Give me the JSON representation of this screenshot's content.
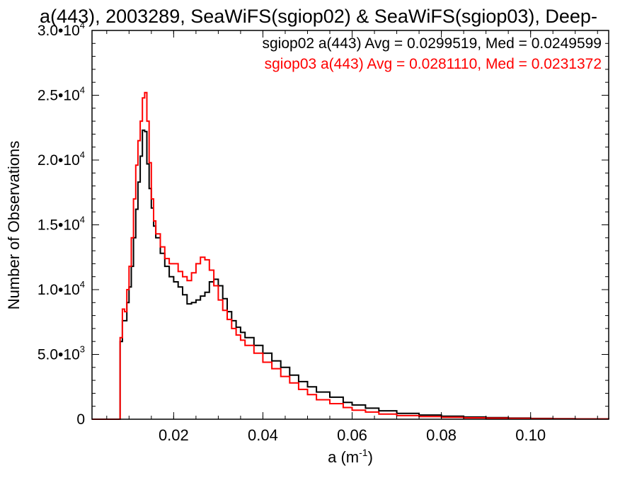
{
  "chart_data": {
    "type": "line",
    "title": "a(443), 2003289, SeaWiFS(sgiop02) & SeaWiFS(sgiop03), Deep-",
    "xlabel": "a (m",
    "xlabel_sup": "-1",
    "xlabel_close": ")",
    "ylabel": "Number of Observations",
    "xlim": [
      0.0017,
      0.1175
    ],
    "ylim": [
      0,
      30000
    ],
    "grid": false,
    "legend_position": "top-right",
    "x_ticks": [
      {
        "value": 0.02,
        "label": "0.02"
      },
      {
        "value": 0.04,
        "label": "0.04"
      },
      {
        "value": 0.06,
        "label": "0.06"
      },
      {
        "value": 0.08,
        "label": "0.08"
      },
      {
        "value": 0.1,
        "label": "0.10"
      }
    ],
    "y_ticks": [
      {
        "value": 0,
        "mant": "0",
        "exp": ""
      },
      {
        "value": 5000,
        "mant": "5.0•10",
        "exp": "3"
      },
      {
        "value": 10000,
        "mant": "1.0•10",
        "exp": "4"
      },
      {
        "value": 15000,
        "mant": "1.5•10",
        "exp": "4"
      },
      {
        "value": 20000,
        "mant": "2.0•10",
        "exp": "4"
      },
      {
        "value": 25000,
        "mant": "2.5•10",
        "exp": "4"
      },
      {
        "value": 30000,
        "mant": "3.0•10",
        "exp": "4"
      }
    ],
    "series": [
      {
        "key": "sgiop02",
        "color": "#000000",
        "legend": "sgiop02 a(443) Avg = 0.0299519, Med = 0.0249599",
        "x": [
          0.0017,
          0.007,
          0.008,
          0.0085,
          0.009,
          0.0095,
          0.01,
          0.0105,
          0.011,
          0.0115,
          0.012,
          0.0125,
          0.013,
          0.0135,
          0.014,
          0.0145,
          0.015,
          0.0155,
          0.016,
          0.017,
          0.018,
          0.019,
          0.02,
          0.021,
          0.022,
          0.023,
          0.024,
          0.025,
          0.026,
          0.027,
          0.028,
          0.029,
          0.03,
          0.031,
          0.032,
          0.033,
          0.034,
          0.035,
          0.036,
          0.038,
          0.04,
          0.042,
          0.044,
          0.046,
          0.048,
          0.05,
          0.052,
          0.055,
          0.058,
          0.06,
          0.063,
          0.066,
          0.07,
          0.075,
          0.08,
          0.085,
          0.09,
          0.095,
          0.1,
          0.105,
          0.11,
          0.1175
        ],
        "values": [
          0,
          0,
          6000,
          7600,
          7600,
          9000,
          10200,
          11800,
          14000,
          16200,
          18300,
          20300,
          22300,
          22200,
          19700,
          17800,
          16300,
          14900,
          14000,
          12800,
          11800,
          11000,
          10600,
          10200,
          9600,
          8900,
          9000,
          9200,
          9500,
          9800,
          10600,
          10800,
          10300,
          9300,
          8300,
          7600,
          7100,
          6700,
          6300,
          5700,
          5100,
          4500,
          4000,
          3400,
          2900,
          2500,
          2100,
          1700,
          1300,
          1100,
          850,
          650,
          450,
          320,
          230,
          170,
          120,
          90,
          60,
          40,
          30,
          20
        ]
      },
      {
        "key": "sgiop03",
        "color": "#ff0000",
        "legend": "sgiop03 a(443) Avg = 0.0281110, Med = 0.0231372",
        "x": [
          0.0017,
          0.007,
          0.008,
          0.0085,
          0.009,
          0.0095,
          0.01,
          0.0105,
          0.011,
          0.0115,
          0.012,
          0.0125,
          0.013,
          0.0135,
          0.014,
          0.0145,
          0.015,
          0.0155,
          0.016,
          0.017,
          0.018,
          0.019,
          0.02,
          0.021,
          0.022,
          0.023,
          0.024,
          0.025,
          0.026,
          0.027,
          0.028,
          0.029,
          0.03,
          0.031,
          0.032,
          0.033,
          0.034,
          0.035,
          0.036,
          0.038,
          0.04,
          0.042,
          0.044,
          0.046,
          0.048,
          0.05,
          0.052,
          0.055,
          0.058,
          0.06,
          0.063,
          0.066,
          0.07,
          0.075,
          0.08,
          0.085,
          0.09,
          0.095,
          0.1,
          0.105,
          0.11,
          0.1175
        ],
        "values": [
          0,
          0,
          6300,
          8500,
          8300,
          10000,
          11800,
          14000,
          17000,
          19600,
          21500,
          23000,
          24800,
          25200,
          23000,
          19800,
          17000,
          15300,
          14300,
          13300,
          12400,
          12000,
          12000,
          11400,
          11000,
          10700,
          11300,
          12000,
          12500,
          12300,
          11500,
          10300,
          9200,
          8400,
          7700,
          7000,
          6500,
          6100,
          5700,
          5100,
          4400,
          3900,
          3300,
          2800,
          2300,
          1900,
          1500,
          1200,
          900,
          700,
          550,
          400,
          280,
          200,
          150,
          110,
          80,
          60,
          40,
          30,
          20,
          15
        ]
      }
    ]
  }
}
